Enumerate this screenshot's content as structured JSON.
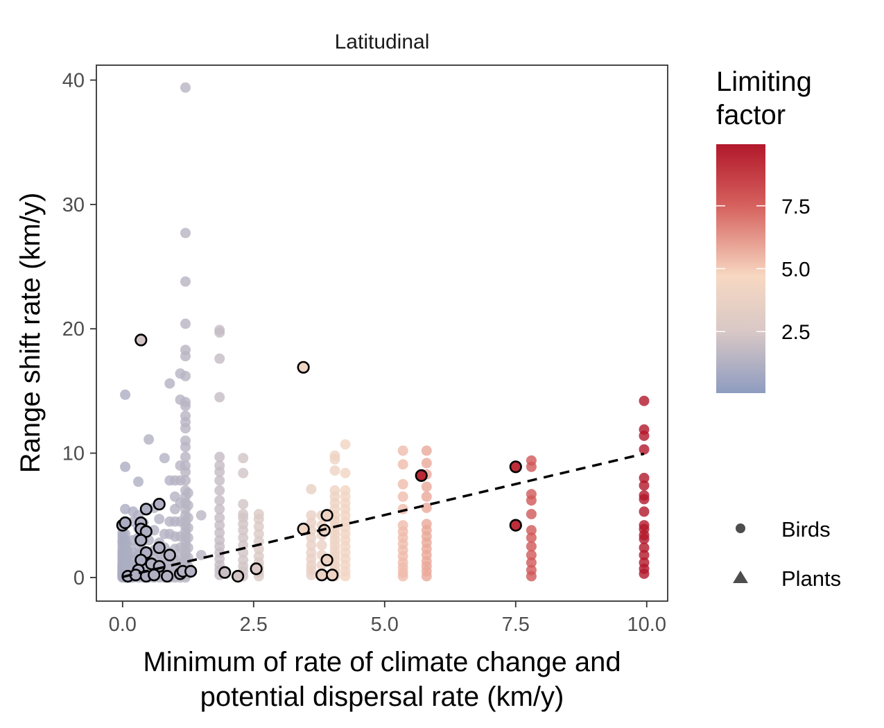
{
  "chart_data": {
    "type": "scatter",
    "facet_title": "Latitudinal",
    "xlabel_lines": [
      "Minimum of rate of climate change and",
      "potential dispersal rate (km/y)"
    ],
    "ylabel": "Range shift rate (km/y)",
    "xlim": [
      -0.5,
      10.4
    ],
    "ylim": [
      -1.9,
      41.2
    ],
    "x_ticks": [
      0,
      2.5,
      5,
      7.5,
      10
    ],
    "x_tick_labels": [
      "0.0",
      "2.5",
      "5.0",
      "7.5",
      "10.0"
    ],
    "y_ticks": [
      0,
      10,
      20,
      30,
      40
    ],
    "y_tick_labels": [
      "0",
      "10",
      "20",
      "30",
      "40"
    ],
    "grid": false,
    "color_legend": {
      "title_lines": [
        "Limiting",
        "factor"
      ],
      "range": [
        0.05,
        9.95
      ],
      "ticks": [
        2.5,
        5.0,
        7.5
      ],
      "tick_labels": [
        "2.5",
        "5.0",
        "7.5"
      ],
      "colors": [
        "#8e9cc0",
        "#d9c8c6",
        "#f7d8c2",
        "#d6625e",
        "#b2182b"
      ]
    },
    "shape_legend": {
      "items": [
        {
          "label": "Birds",
          "shape": "circle"
        },
        {
          "label": "Plants",
          "shape": "triangle"
        }
      ]
    },
    "trend_line": {
      "x": [
        0,
        9.95
      ],
      "y": [
        0.05,
        9.95
      ],
      "style": "dashed"
    },
    "columns": [
      {
        "x": 0.0,
        "ys": [
          0,
          0.05,
          0.1,
          0.15,
          0.2,
          0.25,
          0.3,
          0.35,
          0.4,
          0.5,
          0.6,
          0.7,
          0.8,
          0.9,
          1.0,
          1.2,
          1.4,
          1.6,
          1.8,
          2.0,
          2.2,
          2.5,
          2.8,
          3.0,
          3.3,
          3.6,
          4.0,
          4.3
        ]
      },
      {
        "x": 0.05,
        "ys": [
          0,
          0.1,
          0.2,
          0.3,
          0.4,
          0.5,
          0.7,
          0.9,
          1.1,
          1.3,
          1.5,
          1.8,
          2.1,
          2.4,
          2.7,
          3.0,
          3.5,
          4.5,
          5.5,
          8.9,
          14.7
        ]
      },
      {
        "x": 0.1,
        "ys": [
          0,
          0.1,
          0.2,
          0.3,
          0.5,
          0.8,
          1.2,
          1.6,
          2.0,
          2.5
        ]
      },
      {
        "x": 0.15,
        "ys": [
          0,
          0.1,
          0.2,
          0.3,
          0.5,
          0.7,
          1.0,
          1.4
        ]
      },
      {
        "x": 0.2,
        "ys": [
          0,
          0.2,
          0.4,
          0.7,
          1.0,
          2.0,
          3.0,
          4.5,
          5.3
        ]
      },
      {
        "x": 0.3,
        "ys": [
          0,
          0.2,
          0.5,
          0.8,
          1.2,
          1.8,
          2.5,
          3.2,
          4.0,
          5.0,
          7.7
        ]
      },
      {
        "x": 0.4,
        "ys": [
          0,
          0.3,
          0.6,
          1.0,
          1.5,
          2.2,
          3.0,
          3.6,
          4.4
        ]
      },
      {
        "x": 0.5,
        "ys": [
          0,
          0.2,
          0.5,
          0.9,
          1.4,
          2.0,
          3.0,
          11.1
        ]
      },
      {
        "x": 0.6,
        "ys": [
          0,
          0.3,
          0.7,
          1.1,
          1.6,
          2.2,
          3.8,
          5.6
        ]
      },
      {
        "x": 0.7,
        "ys": [
          0,
          0.3,
          0.8,
          1.3,
          2.0,
          2.8,
          4.7
        ]
      },
      {
        "x": 0.8,
        "ys": [
          0,
          0.2,
          0.5,
          1.0,
          1.6,
          2.4,
          3.5,
          9.6
        ]
      },
      {
        "x": 0.9,
        "ys": [
          0,
          0.3,
          0.7,
          1.2,
          2.0,
          3.5,
          4.5,
          7.8,
          15.6
        ]
      },
      {
        "x": 1.0,
        "ys": [
          0,
          0.3,
          0.8,
          1.4,
          2.3,
          3.3,
          4.5,
          5.5,
          6.5,
          7.8
        ]
      },
      {
        "x": 1.1,
        "ys": [
          0,
          0.2,
          0.6,
          1.0,
          1.6,
          2.4,
          3.3,
          4.5,
          6.0,
          7.8,
          9.0,
          14.3,
          16.4
        ]
      },
      {
        "x": 1.2,
        "ys": [
          0,
          0.2,
          0.4,
          0.6,
          0.9,
          1.2,
          1.5,
          1.8,
          2.1,
          2.5,
          2.9,
          3.3,
          3.7,
          4.1,
          4.5,
          5.0,
          5.5,
          6.0,
          6.5,
          7.0,
          7.8,
          8.5,
          9.0,
          9.7,
          10.5,
          11.0,
          12.0,
          12.5,
          13.0,
          13.8,
          14.1,
          16.2,
          17.8,
          18.3,
          20.4,
          23.8,
          27.7,
          39.4
        ]
      },
      {
        "x": 1.25,
        "ys": [
          0.3,
          0.9,
          1.6,
          2.4,
          3.2,
          4.0,
          4.8,
          5.8,
          6.8
        ]
      },
      {
        "x": 1.5,
        "ys": [
          1.8,
          5.0
        ]
      },
      {
        "x": 1.85,
        "ys": [
          0.2,
          0.6,
          1.0,
          1.5,
          2.0,
          2.5,
          3.0,
          3.6,
          4.2,
          4.8,
          5.5,
          6.2,
          7.0,
          7.8,
          8.5,
          9.0,
          9.7,
          14.5,
          17.6,
          19.7,
          19.9
        ]
      },
      {
        "x": 2.3,
        "ys": [
          0.1,
          0.5,
          0.9,
          1.4,
          2.0,
          2.6,
          3.2,
          3.8,
          4.3,
          4.8,
          5.1,
          5.9,
          8.4,
          9.6
        ]
      },
      {
        "x": 2.6,
        "ys": [
          0.1,
          0.4,
          0.8,
          1.2,
          1.7,
          2.3,
          2.9,
          3.5,
          4.1,
          4.7,
          5.1
        ]
      },
      {
        "x": 3.6,
        "ys": [
          0.2,
          0.6,
          1.0,
          1.5,
          2.0,
          2.6,
          3.2,
          3.8,
          4.4,
          5.0,
          7.1
        ]
      },
      {
        "x": 3.8,
        "ys": [
          0.3,
          1.0,
          1.8,
          2.6,
          3.4,
          4.2,
          5.0
        ]
      },
      {
        "x": 4.05,
        "ys": [
          0.1,
          0.4,
          0.7,
          1.0,
          1.4,
          1.8,
          2.2,
          2.6,
          3.0,
          3.4,
          3.8,
          4.2,
          4.6,
          5.0,
          5.5,
          6.0,
          6.5,
          7.0,
          8.6,
          9.5,
          9.8
        ]
      },
      {
        "x": 4.25,
        "ys": [
          0.1,
          0.5,
          1.0,
          1.5,
          2.0,
          2.5,
          3.0,
          3.5,
          4.0,
          4.5,
          5.0,
          5.5,
          6.0,
          6.5,
          7.0,
          8.4,
          10.7
        ]
      },
      {
        "x": 5.35,
        "ys": [
          0.1,
          0.4,
          0.8,
          1.2,
          1.7,
          2.2,
          2.7,
          3.2,
          3.7,
          4.2,
          5.5,
          6.5,
          7.5,
          9.1,
          10.2
        ]
      },
      {
        "x": 5.8,
        "ys": [
          0.1,
          0.5,
          0.9,
          1.3,
          1.8,
          2.3,
          2.8,
          3.3,
          3.8,
          4.3,
          5.6,
          6.5,
          7.3,
          8.3,
          9.2,
          10.2
        ]
      },
      {
        "x": 7.8,
        "ys": [
          0.1,
          0.6,
          1.2,
          1.8,
          2.5,
          3.2,
          3.8,
          5.1,
          6.2,
          6.7,
          8.9,
          9.4
        ]
      },
      {
        "x": 9.95,
        "ys": [
          0.3,
          0.7,
          1.2,
          1.8,
          2.4,
          3.1,
          3.4,
          3.9,
          4.2,
          5.3,
          6.3,
          6.6,
          7.4,
          8.0,
          10.3,
          11.4,
          11.9,
          14.2
        ]
      }
    ],
    "outlined_points": [
      {
        "x": 0.35,
        "y": 19.1,
        "c": 2.3
      },
      {
        "x": 3.45,
        "y": 16.9,
        "c": 4.3
      },
      {
        "x": 5.7,
        "y": 8.2,
        "c": 9.4
      },
      {
        "x": 7.5,
        "y": 8.9,
        "c": 9.2
      },
      {
        "x": 7.5,
        "y": 4.2,
        "c": 9.2
      },
      {
        "x": 0.7,
        "y": 5.9,
        "c": 1.2
      },
      {
        "x": 0.45,
        "y": 5.5,
        "c": 1.1
      },
      {
        "x": 0.0,
        "y": 4.2,
        "c": 1.0
      },
      {
        "x": 0.05,
        "y": 4.4,
        "c": 1.0
      },
      {
        "x": 0.35,
        "y": 4.4,
        "c": 1.1
      },
      {
        "x": 0.35,
        "y": 3.9,
        "c": 1.1
      },
      {
        "x": 0.45,
        "y": 3.7,
        "c": 1.1
      },
      {
        "x": 0.35,
        "y": 3.0,
        "c": 1.1
      },
      {
        "x": 0.7,
        "y": 2.4,
        "c": 1.2
      },
      {
        "x": 0.45,
        "y": 2.0,
        "c": 1.1
      },
      {
        "x": 0.9,
        "y": 1.8,
        "c": 1.3
      },
      {
        "x": 0.35,
        "y": 1.4,
        "c": 1.1
      },
      {
        "x": 0.55,
        "y": 1.1,
        "c": 1.2
      },
      {
        "x": 0.7,
        "y": 0.9,
        "c": 1.2
      },
      {
        "x": 0.3,
        "y": 0.6,
        "c": 1.1
      },
      {
        "x": 0.1,
        "y": 0.1,
        "c": 1.0
      },
      {
        "x": 0.25,
        "y": 0.2,
        "c": 1.1
      },
      {
        "x": 0.45,
        "y": 0.1,
        "c": 1.1
      },
      {
        "x": 0.6,
        "y": 0.2,
        "c": 1.2
      },
      {
        "x": 0.85,
        "y": 0.1,
        "c": 1.3
      },
      {
        "x": 1.1,
        "y": 0.3,
        "c": 1.3
      },
      {
        "x": 1.15,
        "y": 0.5,
        "c": 1.3
      },
      {
        "x": 1.3,
        "y": 0.5,
        "c": 1.3
      },
      {
        "x": 1.95,
        "y": 0.4,
        "c": 2.0
      },
      {
        "x": 2.2,
        "y": 0.1,
        "c": 2.3
      },
      {
        "x": 2.55,
        "y": 0.7,
        "c": 2.6
      },
      {
        "x": 3.85,
        "y": 3.8,
        "c": 3.9
      },
      {
        "x": 3.9,
        "y": 5.0,
        "c": 4.0
      },
      {
        "x": 3.45,
        "y": 3.9,
        "c": 4.3
      },
      {
        "x": 3.9,
        "y": 1.4,
        "c": 4.0
      },
      {
        "x": 3.8,
        "y": 0.2,
        "c": 3.9
      },
      {
        "x": 4.0,
        "y": 0.2,
        "c": 4.1
      }
    ]
  }
}
